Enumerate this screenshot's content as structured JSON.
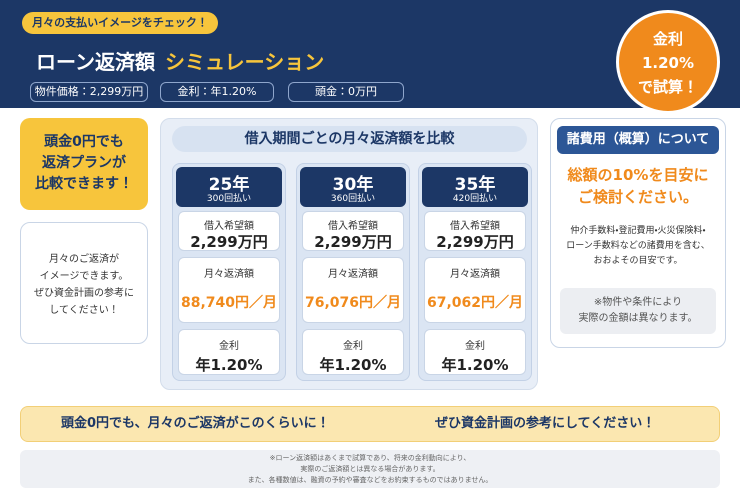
{
  "header": {
    "badge": "月々の支払いイメージをチェック！",
    "title": "ローン返済額",
    "title_highlight": "シミュレーション",
    "conditions": [
      "物件価格：2,299万円",
      "金利：年1.20%",
      "頭金：0万円"
    ],
    "rate_circle": [
      "金利",
      "1.20%",
      "で試算！"
    ]
  },
  "left": {
    "highlight": [
      "頭金0円でも",
      "返済プランが",
      "比較できます！"
    ],
    "note": [
      "月々のご返済が",
      "イメージできます。",
      "ぜひ資金計画の参考に",
      "してください！"
    ]
  },
  "comparison": {
    "title": "借入期間ごとの月々返済額を比較",
    "plans": [
      {
        "term": "25年",
        "payments": "300回払い",
        "loan_label": "借入希望額",
        "loan": "2,299万円",
        "monthly_label": "月々返済額",
        "monthly": "88,740円／月",
        "rate_label": "金利",
        "rate": "年1.20%"
      },
      {
        "term": "30年",
        "payments": "360回払い",
        "loan_label": "借入希望額",
        "loan": "2,299万円",
        "monthly_label": "月々返済額",
        "monthly": "76,076円／月",
        "rate_label": "金利",
        "rate": "年1.20%"
      },
      {
        "term": "35年",
        "payments": "420回払い",
        "loan_label": "借入希望額",
        "loan": "2,299万円",
        "monthly_label": "月々返済額",
        "monthly": "67,062円／月",
        "rate_label": "金利",
        "rate": "年1.20%"
      }
    ]
  },
  "costs": {
    "title": "諸費用（概算）について",
    "headline": [
      "総額の10%を目安に",
      "ご検討ください。"
    ],
    "body": [
      "仲介手数料・登記費用・火災保険料・",
      "ローン手数料などの諸費用を含む、",
      "おおよその目安です。"
    ],
    "note": [
      "※物件や条件により",
      "実際の金額は異なります。"
    ]
  },
  "banner": [
    "頭金0円でも、月々のご返済がこのくらいに！",
    "ぜひ資金計画の参考にしてください！"
  ],
  "footnote": [
    "※ローン返済額はあくまで試算であり、将来の金利動向により、",
    "実際のご返済額とは異なる場合があります。",
    "また、各種数値は、融資の予約や審査などをお約束するものではありません。"
  ]
}
